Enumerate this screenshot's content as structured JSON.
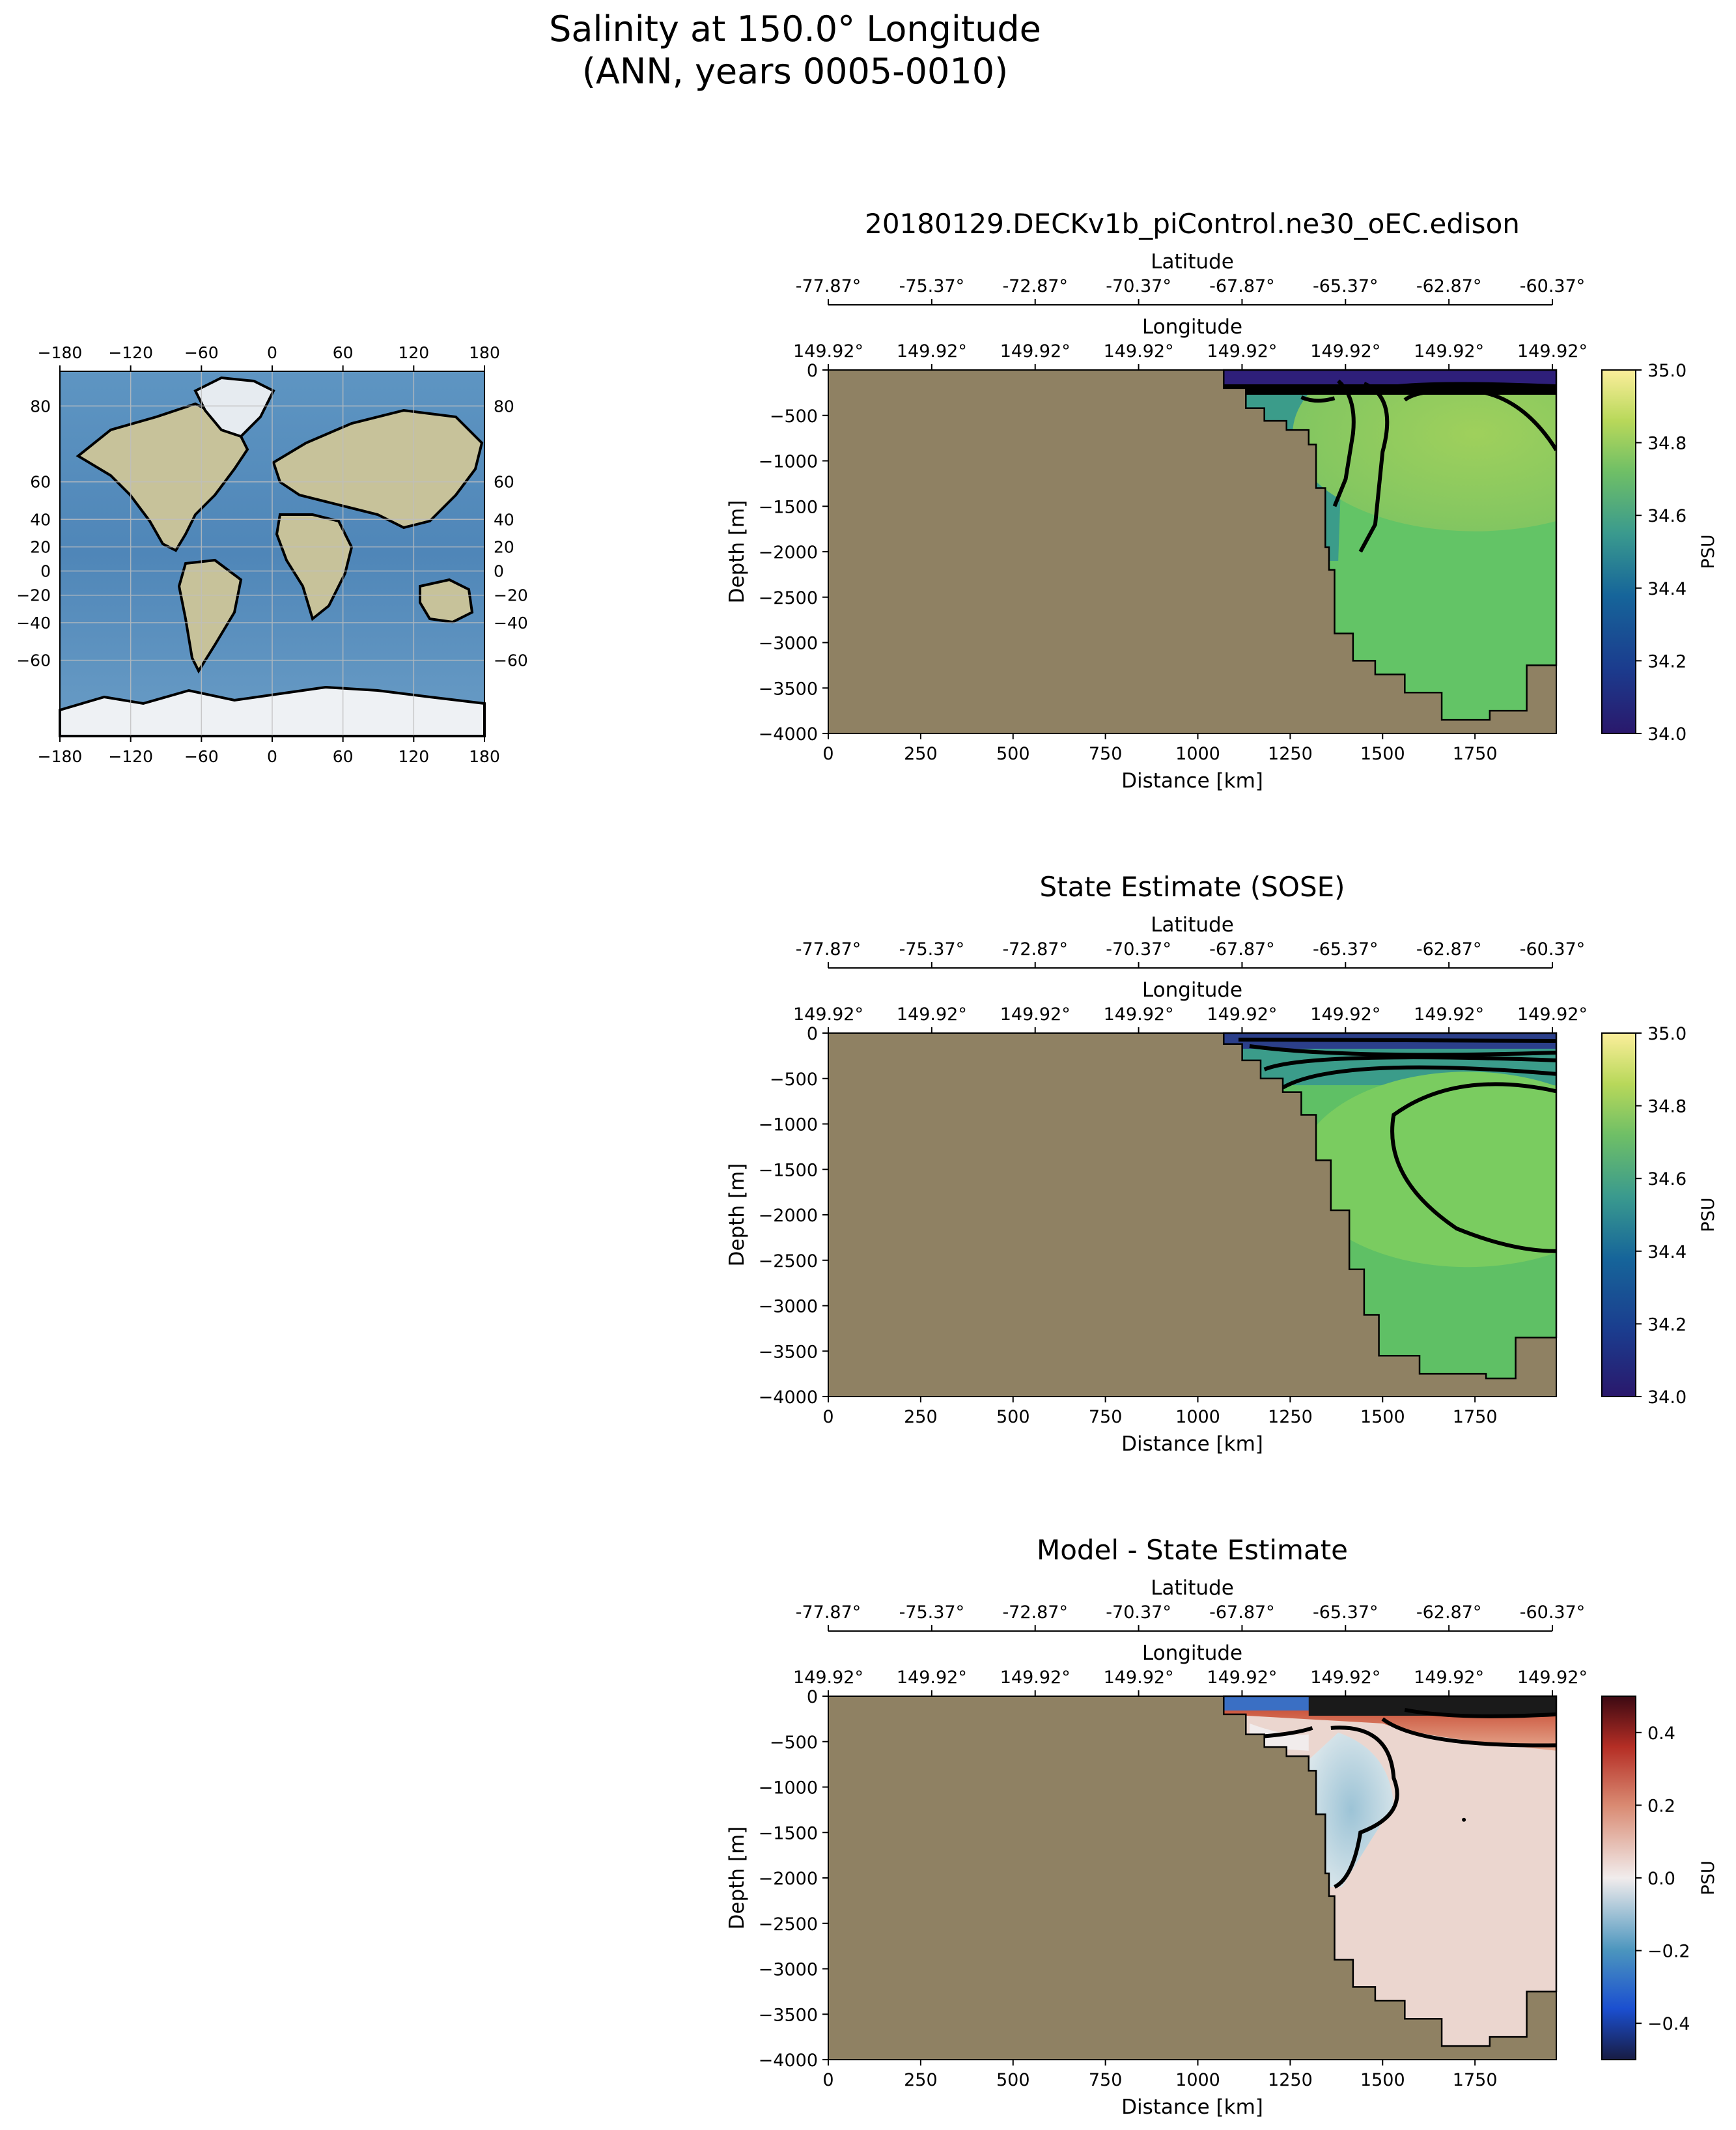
{
  "figure": {
    "title_line1": "Salinity at 150.0° Longitude",
    "title_line2": "(ANN, years 0005-0010)"
  },
  "colors": {
    "land": "#8f8163",
    "ocean_map": "#6b9cc4",
    "contour": "#000000"
  },
  "map": {
    "lon_ticks": [
      "−180",
      "−120",
      "−60",
      "0",
      "60",
      "120",
      "180"
    ],
    "lat_ticks": [
      "80",
      "60",
      "40",
      "20",
      "0",
      "−20",
      "−40",
      "−60"
    ],
    "lat_values": [
      80,
      60,
      40,
      20,
      0,
      -20,
      -40,
      -60
    ]
  },
  "chart_data": [
    {
      "type": "heatmap",
      "title": "20180129.DECKv1b_piControl.ne30_oEC.edison",
      "xlabel": "Distance [km]",
      "ylabel": "Depth [m]",
      "xlim": [
        0,
        1970
      ],
      "ylim": [
        -4000,
        0
      ],
      "x_ticks": [
        "0",
        "250",
        "500",
        "750",
        "1000",
        "1250",
        "1500",
        "1750"
      ],
      "y_ticks": [
        "0",
        "−500",
        "−1000",
        "−1500",
        "−2000",
        "−2500",
        "−3000",
        "−3500",
        "−4000"
      ],
      "top_axis_1": {
        "label": "Longitude",
        "ticks": [
          "149.92°",
          "149.92°",
          "149.92°",
          "149.92°",
          "149.92°",
          "149.92°",
          "149.92°",
          "149.92°"
        ]
      },
      "top_axis_2": {
        "label": "Latitude",
        "ticks": [
          "-77.87°",
          "-75.37°",
          "-72.87°",
          "-70.37°",
          "-67.87°",
          "-65.37°",
          "-62.87°",
          "-60.37°"
        ]
      },
      "colorbar": {
        "label": "PSU",
        "range": [
          34.0,
          35.0
        ],
        "ticks": [
          "35.0",
          "34.8",
          "34.6",
          "34.4",
          "34.2",
          "34.0"
        ],
        "colormap": "haline"
      },
      "ocean_color": "#63c466",
      "surface_color": "#2e1f7a",
      "bathymetry": [
        [
          1070,
          -200
        ],
        [
          1130,
          -420
        ],
        [
          1180,
          -560
        ],
        [
          1240,
          -660
        ],
        [
          1300,
          -820
        ],
        [
          1320,
          -1300
        ],
        [
          1345,
          -1950
        ],
        [
          1355,
          -2200
        ],
        [
          1370,
          -2900
        ],
        [
          1420,
          -3200
        ],
        [
          1480,
          -3350
        ],
        [
          1560,
          -3550
        ],
        [
          1660,
          -3850
        ],
        [
          1790,
          -3750
        ],
        [
          1890,
          -3250
        ],
        [
          1970,
          -3150
        ]
      ]
    },
    {
      "type": "heatmap",
      "title": "State Estimate (SOSE)",
      "xlabel": "Distance [km]",
      "ylabel": "Depth [m]",
      "xlim": [
        0,
        1970
      ],
      "ylim": [
        -4000,
        0
      ],
      "x_ticks": [
        "0",
        "250",
        "500",
        "750",
        "1000",
        "1250",
        "1500",
        "1750"
      ],
      "y_ticks": [
        "0",
        "−500",
        "−1000",
        "−1500",
        "−2000",
        "−2500",
        "−3000",
        "−3500",
        "−4000"
      ],
      "top_axis_1": {
        "label": "Longitude",
        "ticks": [
          "149.92°",
          "149.92°",
          "149.92°",
          "149.92°",
          "149.92°",
          "149.92°",
          "149.92°",
          "149.92°"
        ]
      },
      "top_axis_2": {
        "label": "Latitude",
        "ticks": [
          "-77.87°",
          "-75.37°",
          "-72.87°",
          "-70.37°",
          "-67.87°",
          "-65.37°",
          "-62.87°",
          "-60.37°"
        ]
      },
      "colorbar": {
        "label": "PSU",
        "range": [
          34.0,
          35.0
        ],
        "ticks": [
          "35.0",
          "34.8",
          "34.6",
          "34.4",
          "34.2",
          "34.0"
        ],
        "colormap": "haline"
      },
      "ocean_color": "#5fc065",
      "surface_color": "#2b3f8a",
      "bathymetry": [
        [
          1070,
          -120
        ],
        [
          1120,
          -300
        ],
        [
          1170,
          -500
        ],
        [
          1230,
          -650
        ],
        [
          1280,
          -900
        ],
        [
          1320,
          -1400
        ],
        [
          1360,
          -1950
        ],
        [
          1410,
          -2600
        ],
        [
          1450,
          -3100
        ],
        [
          1490,
          -3550
        ],
        [
          1600,
          -3750
        ],
        [
          1780,
          -3800
        ],
        [
          1860,
          -3350
        ],
        [
          1970,
          -3300
        ]
      ]
    },
    {
      "type": "heatmap",
      "title": "Model - State Estimate",
      "xlabel": "Distance [km]",
      "ylabel": "Depth [m]",
      "xlim": [
        0,
        1970
      ],
      "ylim": [
        -4000,
        0
      ],
      "x_ticks": [
        "0",
        "250",
        "500",
        "750",
        "1000",
        "1250",
        "1500",
        "1750"
      ],
      "y_ticks": [
        "0",
        "−500",
        "−1000",
        "−1500",
        "−2000",
        "−2500",
        "−3000",
        "−3500",
        "−4000"
      ],
      "top_axis_1": {
        "label": "Longitude",
        "ticks": [
          "149.92°",
          "149.92°",
          "149.92°",
          "149.92°",
          "149.92°",
          "149.92°",
          "149.92°",
          "149.92°"
        ]
      },
      "top_axis_2": {
        "label": "Latitude",
        "ticks": [
          "-77.87°",
          "-75.37°",
          "-72.87°",
          "-70.37°",
          "-67.87°",
          "-65.37°",
          "-62.87°",
          "-60.37°"
        ]
      },
      "colorbar": {
        "label": "PSU",
        "range": [
          -0.5,
          0.5
        ],
        "ticks": [
          "0.4",
          "0.2",
          "0.0",
          "−0.2",
          "−0.4"
        ],
        "tick_values": [
          0.4,
          0.2,
          0.0,
          -0.2,
          -0.4
        ],
        "colormap": "balance"
      },
      "ocean_color": "#ebd6cf",
      "surface_color": "#c8492f",
      "bathymetry": [
        [
          1070,
          -200
        ],
        [
          1130,
          -420
        ],
        [
          1180,
          -560
        ],
        [
          1240,
          -660
        ],
        [
          1300,
          -820
        ],
        [
          1320,
          -1300
        ],
        [
          1345,
          -1950
        ],
        [
          1355,
          -2200
        ],
        [
          1370,
          -2900
        ],
        [
          1420,
          -3200
        ],
        [
          1480,
          -3350
        ],
        [
          1560,
          -3550
        ],
        [
          1660,
          -3850
        ],
        [
          1790,
          -3750
        ],
        [
          1890,
          -3250
        ],
        [
          1970,
          -3150
        ]
      ]
    }
  ]
}
